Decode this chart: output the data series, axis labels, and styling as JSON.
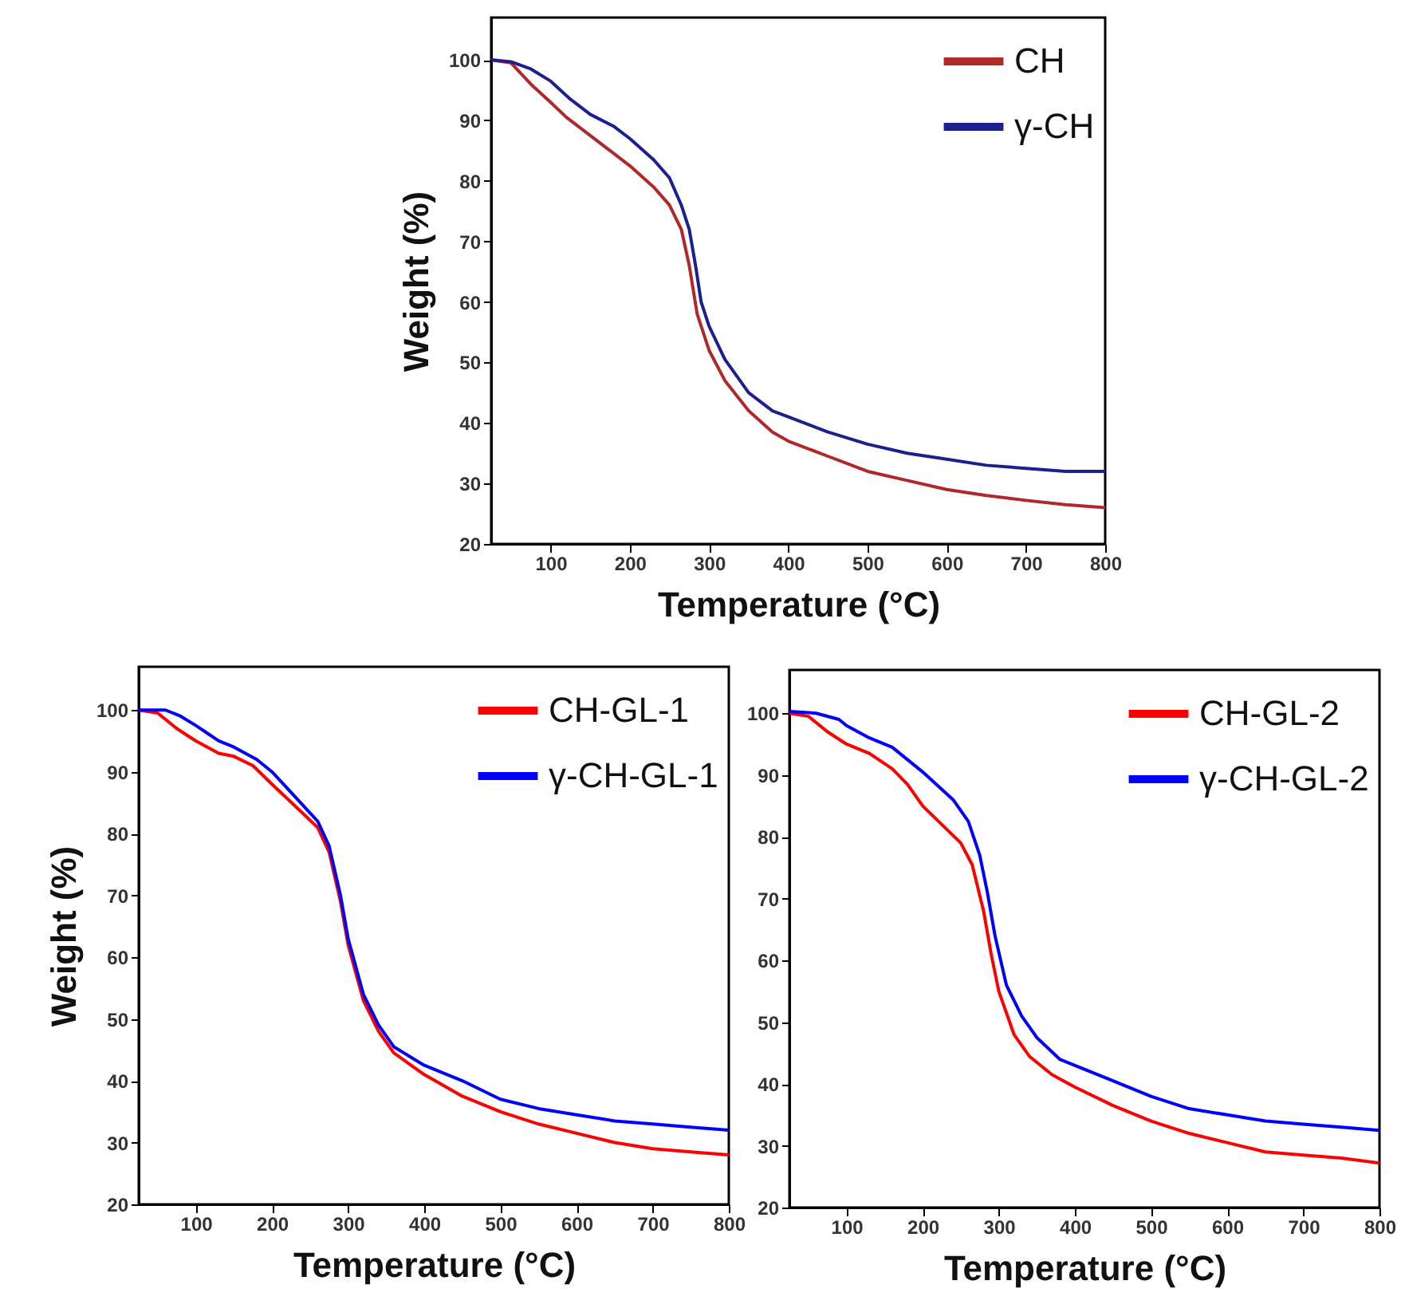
{
  "chart_data": [
    {
      "type": "line",
      "xlabel": "Temperature (°C)",
      "ylabel": "Weight (%)",
      "xlim": [
        25,
        800
      ],
      "ylim": [
        20,
        107
      ],
      "xticks": [
        100,
        200,
        300,
        400,
        500,
        600,
        700,
        800
      ],
      "yticks": [
        20,
        30,
        40,
        50,
        60,
        70,
        80,
        90,
        100
      ],
      "legend": "top right",
      "series": [
        {
          "name": "CH",
          "color": "#b0282a",
          "x": [
            25,
            50,
            75,
            100,
            120,
            150,
            200,
            230,
            250,
            265,
            275,
            285,
            300,
            320,
            350,
            380,
            400,
            450,
            500,
            550,
            600,
            650,
            700,
            750,
            800
          ],
          "values": [
            100,
            99.5,
            96,
            93,
            90.5,
            87.5,
            82.5,
            79,
            76,
            72,
            66,
            58,
            52,
            47,
            42,
            38.5,
            37,
            34.5,
            32,
            30.5,
            29,
            28,
            27.2,
            26.5,
            26
          ]
        },
        {
          "name": "γ-CH",
          "color": "#1c1f8f",
          "x": [
            25,
            50,
            75,
            100,
            125,
            150,
            180,
            200,
            230,
            250,
            265,
            275,
            283,
            290,
            300,
            320,
            350,
            380,
            400,
            450,
            500,
            550,
            600,
            650,
            700,
            750,
            800
          ],
          "values": [
            100,
            99.7,
            98.5,
            96.5,
            93.5,
            91,
            89,
            87,
            83.5,
            80.5,
            76,
            72,
            66,
            60,
            56,
            50.5,
            45,
            42,
            41,
            38.5,
            36.5,
            35,
            34,
            33,
            32.5,
            32,
            32
          ]
        }
      ]
    },
    {
      "type": "line",
      "xlabel": "Temperature (°C)",
      "ylabel": "Weight (%)",
      "xlim": [
        25,
        800
      ],
      "ylim": [
        20,
        107
      ],
      "xticks": [
        100,
        200,
        300,
        400,
        500,
        600,
        700,
        800
      ],
      "yticks": [
        20,
        30,
        40,
        50,
        60,
        70,
        80,
        90,
        100
      ],
      "legend": "top right",
      "series": [
        {
          "name": "CH-GL-1",
          "color": "#ff0000",
          "x": [
            25,
            50,
            75,
            100,
            130,
            150,
            175,
            200,
            230,
            260,
            275,
            290,
            300,
            320,
            340,
            360,
            400,
            450,
            500,
            550,
            600,
            650,
            700,
            750,
            800
          ],
          "values": [
            100,
            99.5,
            97,
            95,
            93,
            92.5,
            91,
            88,
            84.5,
            81,
            77,
            69,
            62,
            53,
            48,
            44.5,
            41,
            37.5,
            35,
            33,
            31.5,
            30,
            29,
            28.5,
            28
          ]
        },
        {
          "name": "γ-CH-GL-1",
          "color": "#0000ff",
          "x": [
            25,
            60,
            80,
            100,
            130,
            150,
            180,
            200,
            230,
            260,
            275,
            290,
            300,
            320,
            340,
            360,
            400,
            450,
            500,
            550,
            600,
            650,
            700,
            750,
            800
          ],
          "values": [
            100,
            100,
            99,
            97.5,
            95,
            94,
            92,
            90,
            86,
            82,
            78,
            70,
            63,
            54,
            49,
            45.5,
            42.5,
            40,
            37,
            35.5,
            34.5,
            33.5,
            33,
            32.5,
            32
          ]
        }
      ]
    },
    {
      "type": "line",
      "xlabel": "Temperature (°C)",
      "xlim": [
        25,
        800
      ],
      "ylim": [
        20,
        107
      ],
      "xticks": [
        100,
        200,
        300,
        400,
        500,
        600,
        700,
        800
      ],
      "yticks": [
        20,
        30,
        40,
        50,
        60,
        70,
        80,
        90,
        100
      ],
      "legend": "top right",
      "series": [
        {
          "name": "CH-GL-2",
          "color": "#ff0000",
          "x": [
            25,
            50,
            75,
            100,
            130,
            160,
            180,
            200,
            225,
            250,
            265,
            280,
            290,
            300,
            320,
            340,
            370,
            400,
            450,
            500,
            550,
            600,
            650,
            700,
            750,
            800
          ],
          "values": [
            100,
            99.5,
            97,
            95,
            93.5,
            91,
            88.5,
            85,
            82,
            79,
            75.5,
            68,
            61,
            55,
            48,
            44.5,
            41.5,
            39.5,
            36.5,
            34,
            32,
            30.5,
            29,
            28.5,
            28,
            27.2
          ]
        },
        {
          "name": "γ-CH-GL-2",
          "color": "#0000ff",
          "x": [
            25,
            60,
            90,
            100,
            130,
            160,
            180,
            200,
            240,
            260,
            275,
            285,
            295,
            310,
            330,
            350,
            380,
            400,
            450,
            500,
            550,
            600,
            650,
            700,
            750,
            800
          ],
          "values": [
            100.3,
            100,
            99,
            98,
            96,
            94.5,
            92.5,
            90.5,
            86,
            82.5,
            77,
            71,
            64,
            56,
            51,
            47.5,
            44,
            43,
            40.5,
            38,
            36,
            35,
            34,
            33.5,
            33,
            32.5
          ]
        }
      ]
    }
  ]
}
